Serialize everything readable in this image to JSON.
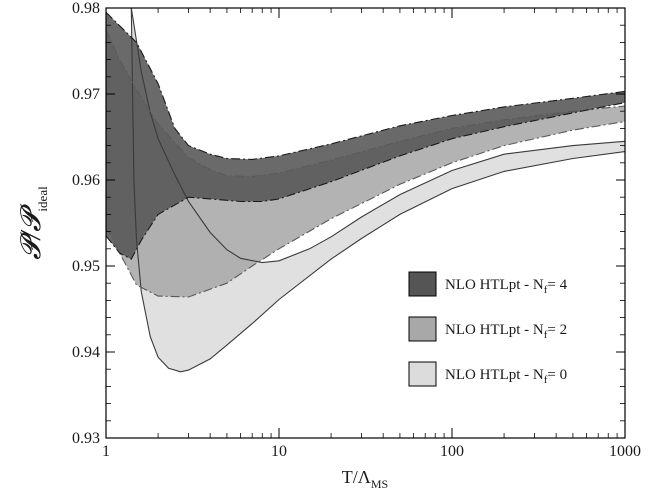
{
  "chart_data": {
    "type": "area",
    "xscale": "log",
    "xlim": [
      1,
      1000
    ],
    "ylim": [
      0.93,
      0.98
    ],
    "grid": false,
    "legend_position": "lower-right",
    "xlabel": {
      "main": "T/Λ",
      "sub": "MS"
    },
    "ylabel": {
      "main": "𝓟/𝓟",
      "sub": "ideal"
    },
    "xticks": [
      {
        "value": 1,
        "label": "1"
      },
      {
        "value": 10,
        "label": "10"
      },
      {
        "value": 100,
        "label": "100"
      },
      {
        "value": 1000,
        "label": "1000"
      }
    ],
    "yticks": [
      {
        "value": 0.93,
        "label": "0.93"
      },
      {
        "value": 0.94,
        "label": "0.94"
      },
      {
        "value": 0.95,
        "label": "0.95"
      },
      {
        "value": 0.96,
        "label": "0.96"
      },
      {
        "value": 0.97,
        "label": "0.97"
      },
      {
        "value": 0.98,
        "label": "0.98"
      }
    ],
    "series": [
      {
        "name": "NLO HTLpt - N",
        "name_sub": "f",
        "name_suffix": "= 0",
        "fill": "#dcdcdc",
        "stroke": "#3a3a3a",
        "dashed": false,
        "upper": [
          [
            1.4,
            0.98
          ],
          [
            1.6,
            0.9726
          ],
          [
            1.8,
            0.9679
          ],
          [
            2.0,
            0.9648
          ],
          [
            2.5,
            0.9606
          ],
          [
            3.0,
            0.9575
          ],
          [
            4.0,
            0.9539
          ],
          [
            5.0,
            0.9519
          ],
          [
            6.0,
            0.9509
          ],
          [
            8.0,
            0.9504
          ],
          [
            10.0,
            0.9506
          ],
          [
            15.0,
            0.952
          ],
          [
            20.0,
            0.9534
          ],
          [
            30.0,
            0.9557
          ],
          [
            50.0,
            0.9583
          ],
          [
            100.0,
            0.9611
          ],
          [
            200.0,
            0.963
          ],
          [
            500.0,
            0.964
          ],
          [
            1000.0,
            0.9645
          ]
        ],
        "lower": [
          [
            1.4,
            0.98
          ],
          [
            1.45,
            0.96
          ],
          [
            1.5,
            0.953
          ],
          [
            1.6,
            0.947
          ],
          [
            1.8,
            0.9418
          ],
          [
            2.0,
            0.9394
          ],
          [
            2.3,
            0.9381
          ],
          [
            2.7,
            0.9377
          ],
          [
            3.0,
            0.9379
          ],
          [
            4.0,
            0.9392
          ],
          [
            5.0,
            0.9408
          ],
          [
            7.0,
            0.9433
          ],
          [
            10.0,
            0.9461
          ],
          [
            20.0,
            0.9508
          ],
          [
            30.0,
            0.9532
          ],
          [
            50.0,
            0.956
          ],
          [
            100.0,
            0.959
          ],
          [
            200.0,
            0.961
          ],
          [
            500.0,
            0.9625
          ],
          [
            1000.0,
            0.9633
          ]
        ]
      },
      {
        "name": "NLO HTLpt - N",
        "name_sub": "f",
        "name_suffix": "= 2",
        "fill": "#a8a8a8",
        "stroke": "#5a5a5a",
        "dashed": true,
        "upper": [
          [
            1.0,
            0.9775
          ],
          [
            1.2,
            0.974
          ],
          [
            1.5,
            0.9705
          ],
          [
            2.0,
            0.9665
          ],
          [
            3.0,
            0.9626
          ],
          [
            4.0,
            0.9612
          ],
          [
            5.0,
            0.9605
          ],
          [
            7.0,
            0.9604
          ],
          [
            10.0,
            0.9608
          ],
          [
            20.0,
            0.9623
          ],
          [
            50.0,
            0.9645
          ],
          [
            100.0,
            0.966
          ],
          [
            200.0,
            0.967
          ],
          [
            500.0,
            0.968
          ],
          [
            1000.0,
            0.9686
          ]
        ],
        "lower": [
          [
            1.0,
            0.9545
          ],
          [
            1.2,
            0.9515
          ],
          [
            1.5,
            0.9478
          ],
          [
            2.0,
            0.9465
          ],
          [
            3.0,
            0.9464
          ],
          [
            5.0,
            0.948
          ],
          [
            7.0,
            0.95
          ],
          [
            10.0,
            0.952
          ],
          [
            20.0,
            0.9555
          ],
          [
            50.0,
            0.9595
          ],
          [
            100.0,
            0.962
          ],
          [
            200.0,
            0.964
          ],
          [
            500.0,
            0.9658
          ],
          [
            1000.0,
            0.9668
          ]
        ]
      },
      {
        "name": "NLO HTLpt - N",
        "name_sub": "f",
        "name_suffix": "= 4",
        "fill": "#555555",
        "stroke": "#1a1a1a",
        "dashed": true,
        "upper": [
          [
            1.0,
            0.9795
          ],
          [
            1.5,
            0.976
          ],
          [
            2.0,
            0.9712
          ],
          [
            2.5,
            0.966
          ],
          [
            3.0,
            0.964
          ],
          [
            4.0,
            0.963
          ],
          [
            5.0,
            0.9625
          ],
          [
            7.0,
            0.9624
          ],
          [
            10.0,
            0.9628
          ],
          [
            20.0,
            0.9642
          ],
          [
            50.0,
            0.9663
          ],
          [
            100.0,
            0.9675
          ],
          [
            200.0,
            0.9685
          ],
          [
            500.0,
            0.9695
          ],
          [
            1000.0,
            0.9703
          ]
        ],
        "lower": [
          [
            1.0,
            0.9535
          ],
          [
            1.2,
            0.9515
          ],
          [
            1.4,
            0.9508
          ],
          [
            1.6,
            0.953
          ],
          [
            2.0,
            0.956
          ],
          [
            3.0,
            0.958
          ],
          [
            4.0,
            0.9578
          ],
          [
            6.0,
            0.9575
          ],
          [
            8.0,
            0.9575
          ],
          [
            10.0,
            0.9578
          ],
          [
            20.0,
            0.9598
          ],
          [
            50.0,
            0.9628
          ],
          [
            100.0,
            0.9648
          ],
          [
            200.0,
            0.9662
          ],
          [
            500.0,
            0.9678
          ],
          [
            1000.0,
            0.969
          ]
        ]
      }
    ]
  }
}
